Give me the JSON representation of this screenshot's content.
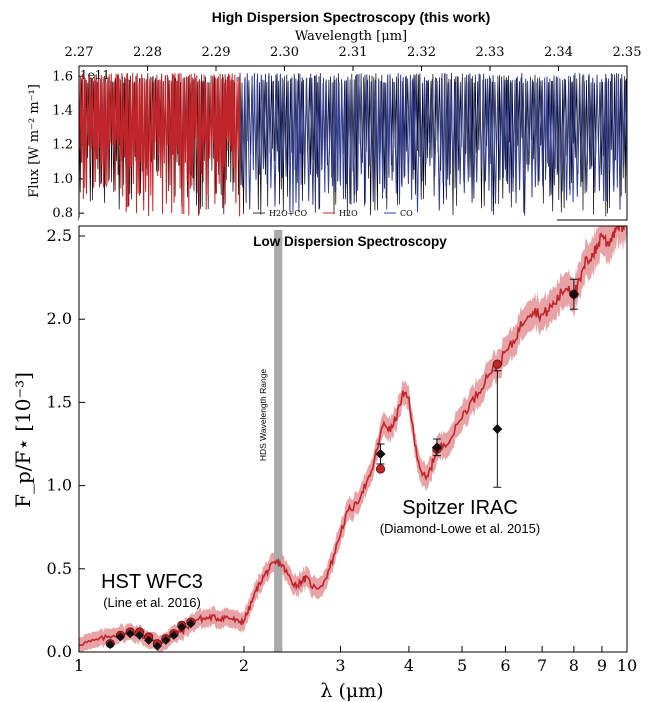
{
  "chart_data": [
    {
      "panel": "top",
      "type": "line",
      "title": "High Dispersion Spectroscopy (this work)",
      "xlabel": "Wavelength [μm]",
      "ylabel": "Flux [W m⁻² m⁻¹]",
      "offset_text": "1e11",
      "xlim": [
        2.27,
        2.35
      ],
      "ylim": [
        0.76,
        1.66
      ],
      "xticks": [
        "2.27",
        "2.28",
        "2.29",
        "2.30",
        "2.31",
        "2.32",
        "2.33",
        "2.34",
        "2.35"
      ],
      "yticks": [
        "0.8",
        "1.0",
        "1.2",
        "1.4",
        "1.6"
      ],
      "series": [
        {
          "name": "H2O+CO",
          "color": "#000000",
          "x_range": [
            2.27,
            2.35
          ],
          "continuum": 1.62,
          "line_depth_min": 0.78
        },
        {
          "name": "H2O",
          "color": "#c0252a",
          "x_range": [
            2.27,
            2.2935
          ],
          "continuum": 1.62,
          "line_depth_min": 0.78
        },
        {
          "name": "CO",
          "color": "#34409a",
          "x_range": [
            2.2935,
            2.35
          ],
          "continuum": 1.62,
          "line_depth_min": 0.8
        }
      ]
    },
    {
      "panel": "bottom",
      "type": "line",
      "title": "Low Dispersion Spectroscopy",
      "xlabel": "λ (μm)",
      "ylabel": "F_p/F⋆ [10⁻³]",
      "xscale": "log",
      "xlim": [
        1,
        10
      ],
      "ylim": [
        0,
        2.56
      ],
      "xticks": [
        "1",
        "2",
        "3",
        "4",
        "5",
        "6",
        "7",
        "8",
        "9",
        "10"
      ],
      "yticks": [
        "0.0",
        "0.5",
        "1.0",
        "1.5",
        "2.0",
        "2.5"
      ],
      "colors": {
        "model": "#c0252a",
        "band": "#e8a3a7",
        "hds_band": "#aaaaaa"
      },
      "model": {
        "x": [
          1.0,
          1.05,
          1.1,
          1.15,
          1.2,
          1.25,
          1.3,
          1.35,
          1.4,
          1.45,
          1.5,
          1.55,
          1.6,
          1.65,
          1.7,
          1.75,
          1.8,
          1.85,
          1.9,
          1.95,
          2.0,
          2.05,
          2.1,
          2.15,
          2.2,
          2.25,
          2.3,
          2.35,
          2.4,
          2.45,
          2.5,
          2.55,
          2.6,
          2.7,
          2.8,
          2.9,
          3.0,
          3.1,
          3.2,
          3.3,
          3.4,
          3.5,
          3.6,
          3.7,
          3.8,
          3.9,
          4.0,
          4.1,
          4.2,
          4.3,
          4.4,
          4.5,
          4.6,
          4.8,
          5.0,
          5.2,
          5.4,
          5.6,
          5.8,
          6.0,
          6.2,
          6.4,
          6.6,
          6.8,
          7.0,
          7.2,
          7.4,
          7.6,
          7.8,
          8.0,
          8.2,
          8.4,
          8.6,
          8.8,
          9.0,
          9.2,
          9.4,
          9.6,
          9.8,
          10.0
        ],
        "y": [
          0.05,
          0.06,
          0.08,
          0.1,
          0.11,
          0.12,
          0.1,
          0.07,
          0.05,
          0.08,
          0.11,
          0.13,
          0.17,
          0.2,
          0.2,
          0.21,
          0.2,
          0.21,
          0.2,
          0.18,
          0.19,
          0.27,
          0.36,
          0.43,
          0.48,
          0.52,
          0.54,
          0.52,
          0.47,
          0.42,
          0.4,
          0.43,
          0.44,
          0.38,
          0.42,
          0.55,
          0.72,
          0.85,
          0.88,
          0.98,
          1.05,
          1.22,
          1.38,
          1.33,
          1.42,
          1.55,
          1.52,
          1.25,
          1.1,
          1.03,
          1.12,
          1.22,
          1.24,
          1.3,
          1.42,
          1.5,
          1.58,
          1.68,
          1.72,
          1.8,
          1.86,
          1.96,
          2.04,
          2.05,
          2.02,
          2.06,
          2.1,
          2.16,
          2.2,
          2.15,
          2.22,
          2.34,
          2.38,
          2.42,
          2.52,
          2.45,
          2.5,
          2.58,
          2.55,
          2.6
        ],
        "uncertainty": 0.04
      },
      "hst_wfc3": {
        "label": "HST WFC3",
        "citation": "(Line et al. 2016)",
        "model_points": [
          [
            1.14,
            0.05
          ],
          [
            1.19,
            0.1
          ],
          [
            1.24,
            0.12
          ],
          [
            1.29,
            0.12
          ],
          [
            1.34,
            0.09
          ],
          [
            1.39,
            0.05
          ],
          [
            1.44,
            0.08
          ],
          [
            1.49,
            0.11
          ],
          [
            1.54,
            0.16
          ],
          [
            1.6,
            0.18
          ]
        ],
        "observed": [
          [
            1.14,
            0.045
          ],
          [
            1.19,
            0.09
          ],
          [
            1.24,
            0.11
          ],
          [
            1.29,
            0.1
          ],
          [
            1.34,
            0.07
          ],
          [
            1.39,
            0.035
          ],
          [
            1.44,
            0.07
          ],
          [
            1.49,
            0.1
          ],
          [
            1.54,
            0.15
          ],
          [
            1.6,
            0.17
          ]
        ]
      },
      "spitzer_irac": {
        "label": "Spitzer IRAC",
        "citation": "(Diamond-Lowe et al. 2015)",
        "model_points": [
          [
            3.55,
            1.1
          ],
          [
            4.5,
            1.22
          ],
          [
            5.8,
            1.73
          ],
          [
            8.0,
            2.15
          ]
        ],
        "observed": [
          {
            "x": 3.55,
            "y": 1.19,
            "err": 0.06
          },
          {
            "x": 4.5,
            "y": 1.23,
            "err": 0.05
          },
          {
            "x": 5.8,
            "y": 1.34,
            "err": 0.35
          },
          {
            "x": 8.0,
            "y": 2.15,
            "err": 0.09
          }
        ]
      },
      "hds_band": {
        "label": "HDS Wavelength Range",
        "x_range": [
          2.27,
          2.35
        ]
      }
    }
  ],
  "legend": {
    "items": [
      {
        "name": "H2O+CO",
        "color": "#333333"
      },
      {
        "name": "H2O",
        "color": "#c0252a"
      },
      {
        "name": "CO",
        "color": "#34409a"
      }
    ]
  }
}
